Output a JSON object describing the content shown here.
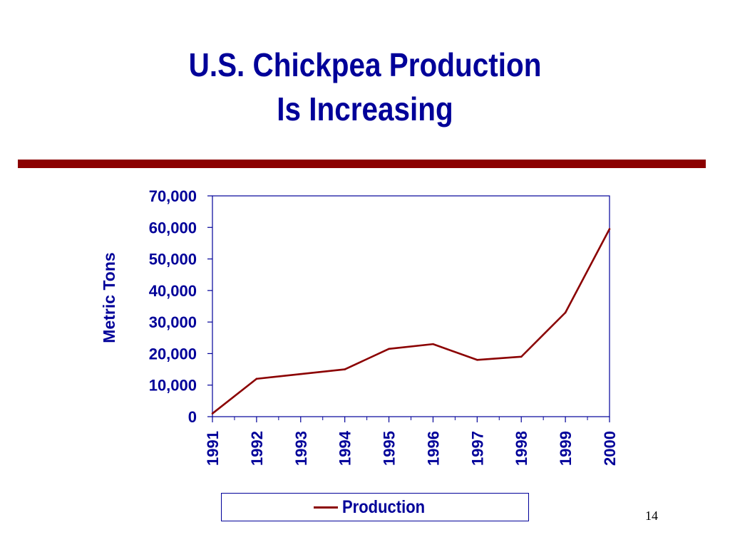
{
  "slide": {
    "title_line1": "U.S. Chickpea Production",
    "title_line2": "Is Increasing",
    "page_number": "14"
  },
  "colors": {
    "title": "#000099",
    "rule": "#8b0000",
    "series": "#8b0000",
    "axis": "#000099"
  },
  "chart_data": {
    "type": "line",
    "title": "",
    "xlabel": "",
    "ylabel": "Metric Tons",
    "categories": [
      "1991",
      "1992",
      "1993",
      "1994",
      "1995",
      "1996",
      "1997",
      "1998",
      "1999",
      "2000"
    ],
    "series": [
      {
        "name": "Production",
        "values": [
          1000,
          12000,
          13500,
          15000,
          21500,
          23000,
          18000,
          19000,
          33000,
          59500
        ]
      }
    ],
    "ylim": [
      0,
      70000
    ],
    "yticks": [
      0,
      10000,
      20000,
      30000,
      40000,
      50000,
      60000,
      70000
    ],
    "ytick_labels": [
      "0",
      "10,000",
      "20,000",
      "30,000",
      "40,000",
      "50,000",
      "60,000",
      "70,000"
    ],
    "grid": false,
    "legend_position": "bottom"
  }
}
